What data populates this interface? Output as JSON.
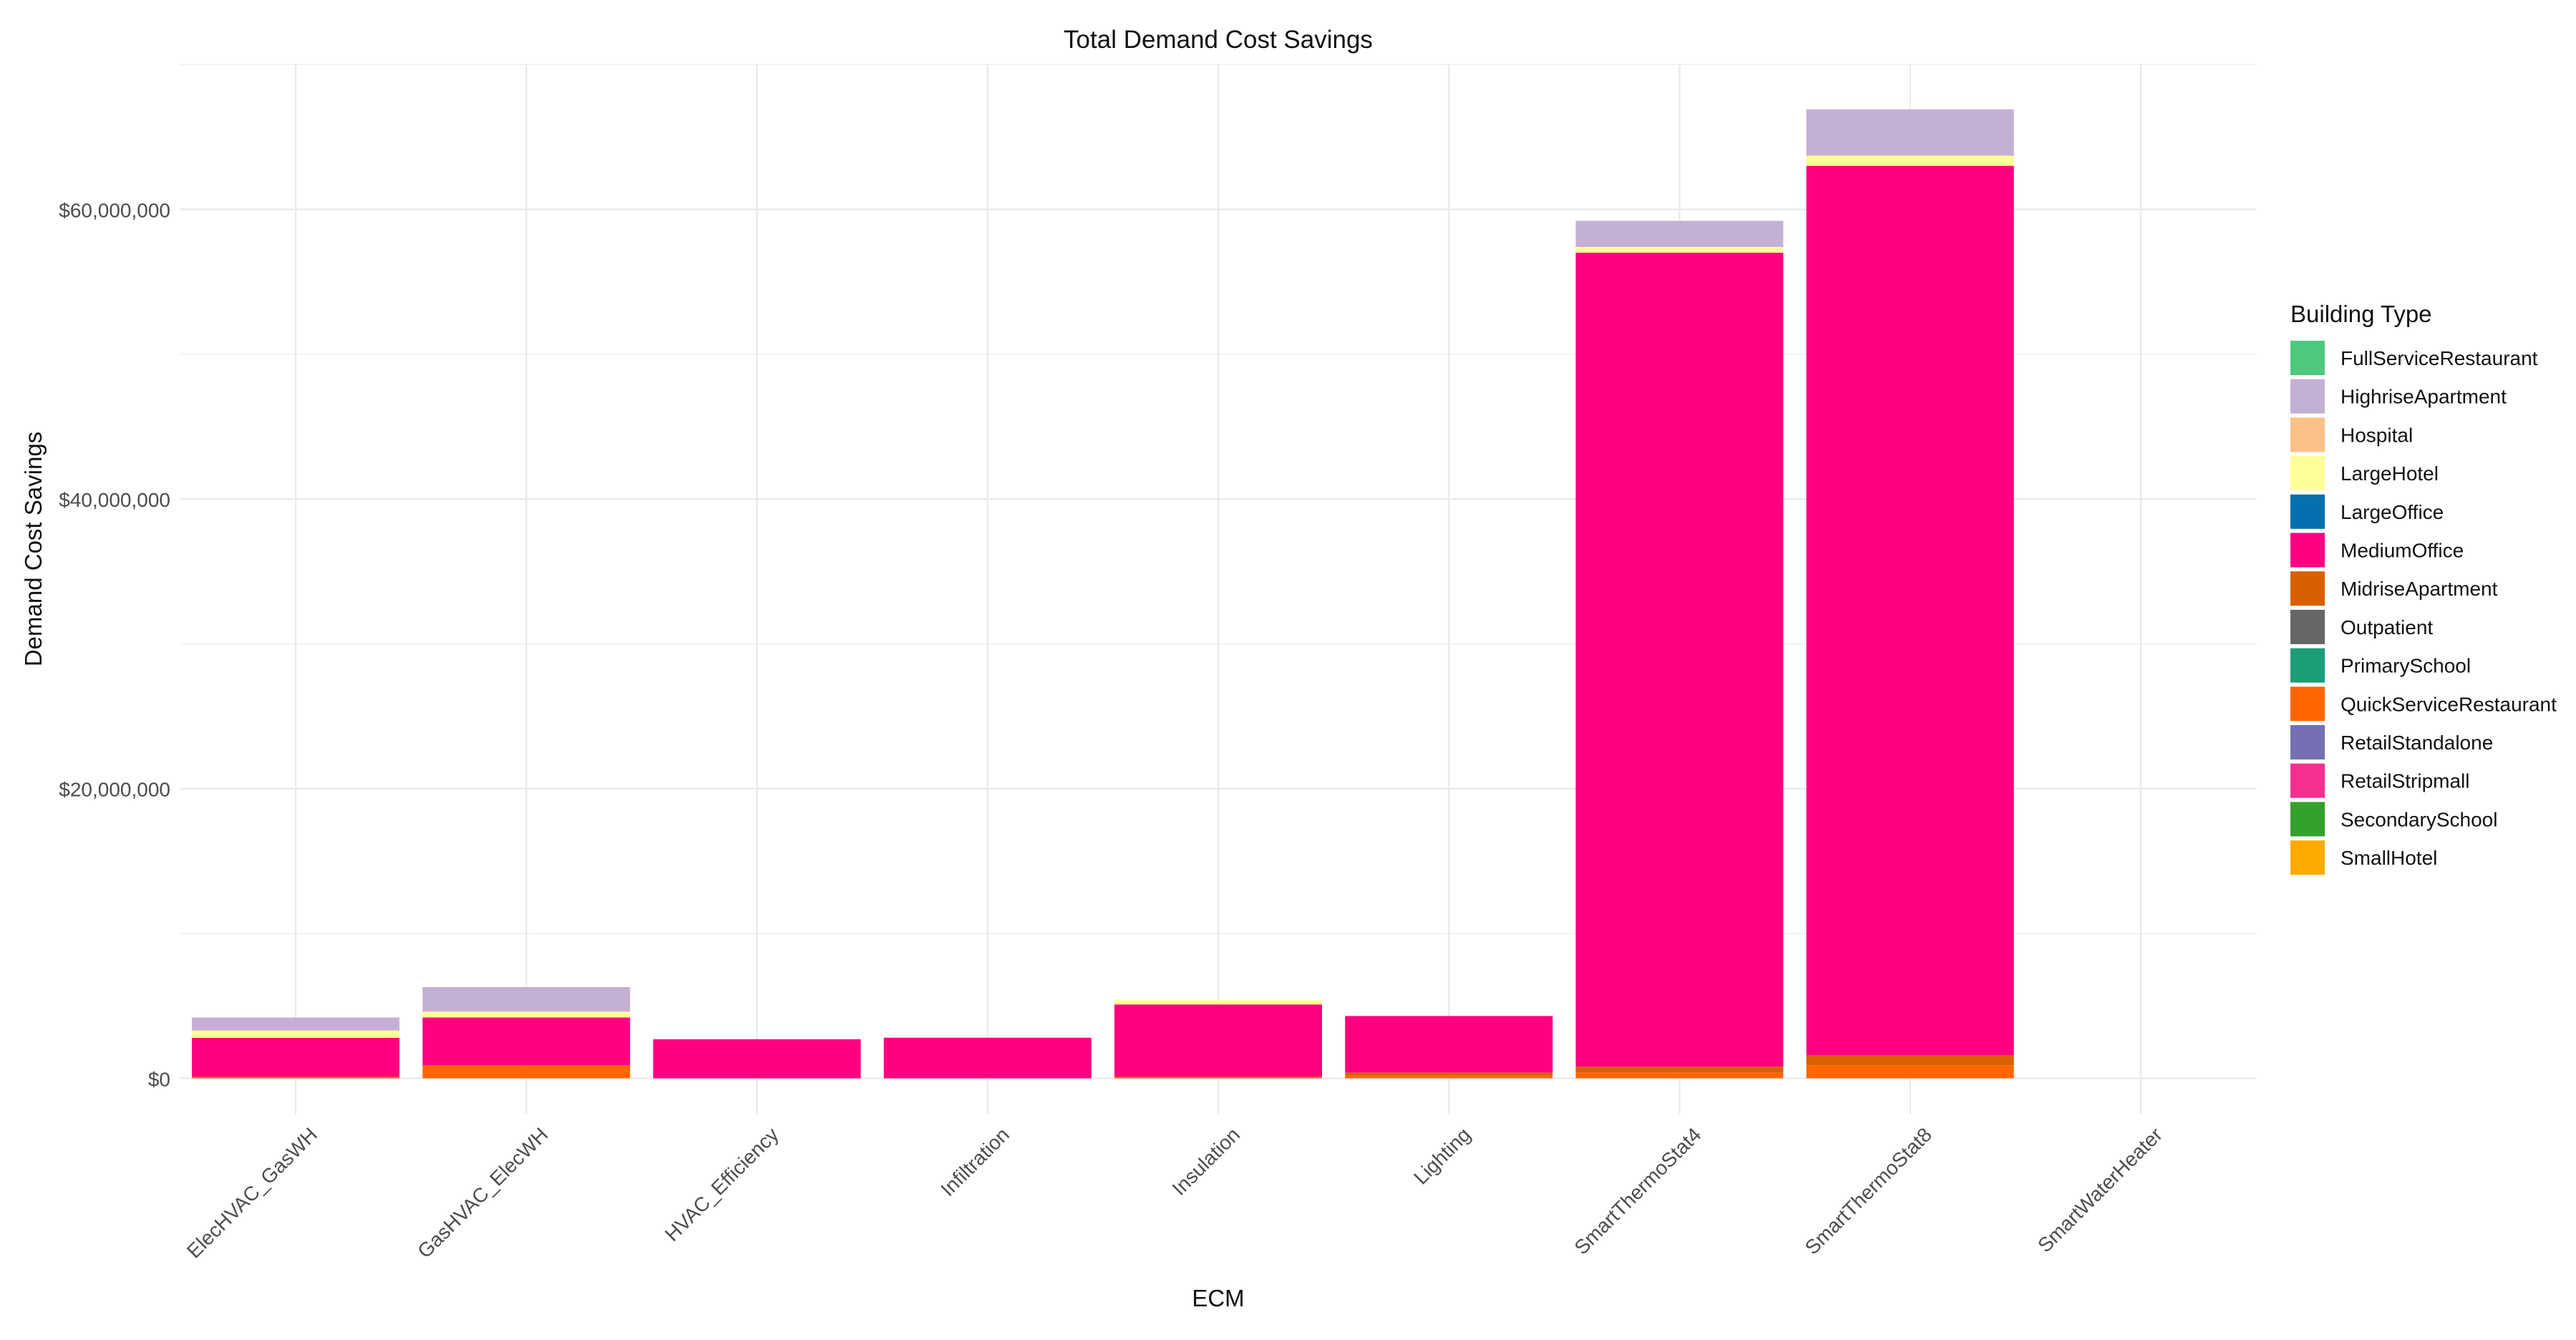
{
  "chart_data": {
    "type": "bar",
    "stacked": true,
    "title": "Total Demand Cost Savings",
    "xlabel": "ECM",
    "ylabel": "Demand Cost Savings",
    "ylim": [
      -2500000,
      70000000
    ],
    "y_ticks": [
      0,
      20000000,
      40000000,
      60000000
    ],
    "y_tick_labels": [
      "$0",
      "$20,000,000",
      "$40,000,000",
      "$60,000,000"
    ],
    "grid": true,
    "legend_title": "Building Type",
    "legend_position": "right",
    "categories": [
      "ElecHVAC_GasWH",
      "GasHVAC_ElecWH",
      "HVAC_Efficiency",
      "Infiltration",
      "Insulation",
      "Lighting",
      "SmartThermoStat4",
      "SmartThermoStat8",
      "SmartWaterHeater"
    ],
    "series": [
      {
        "name": "FullServiceRestaurant",
        "color": "#4DC97E",
        "values": [
          0,
          0,
          0,
          0,
          0,
          0,
          0,
          0,
          0
        ]
      },
      {
        "name": "HighriseApartment",
        "color": "#C5B0D5",
        "values": [
          900000,
          1700000,
          0,
          0,
          0,
          0,
          1800000,
          3200000,
          0
        ]
      },
      {
        "name": "Hospital",
        "color": "#FDC086",
        "values": [
          0,
          0,
          0,
          0,
          0,
          0,
          0,
          0,
          0
        ]
      },
      {
        "name": "LargeHotel",
        "color": "#FFFF99",
        "values": [
          500000,
          400000,
          0,
          0,
          300000,
          0,
          400000,
          700000,
          0
        ]
      },
      {
        "name": "LargeOffice",
        "color": "#0570B0",
        "values": [
          0,
          0,
          0,
          0,
          0,
          0,
          0,
          0,
          0
        ]
      },
      {
        "name": "MediumOffice",
        "color": "#FF0080",
        "values": [
          2700000,
          3300000,
          2700000,
          2800000,
          5000000,
          3900000,
          56200000,
          61400000,
          0
        ]
      },
      {
        "name": "MidriseApartment",
        "color": "#D95F02",
        "values": [
          0,
          0,
          0,
          0,
          0,
          200000,
          400000,
          700000,
          0
        ]
      },
      {
        "name": "Outpatient",
        "color": "#666666",
        "values": [
          0,
          0,
          0,
          0,
          0,
          0,
          0,
          0,
          0
        ]
      },
      {
        "name": "PrimarySchool",
        "color": "#1B9E77",
        "values": [
          0,
          0,
          0,
          0,
          0,
          0,
          0,
          0,
          0
        ]
      },
      {
        "name": "QuickServiceRestaurant",
        "color": "#FF6600",
        "values": [
          100000,
          900000,
          0,
          0,
          100000,
          200000,
          400000,
          900000,
          0
        ]
      },
      {
        "name": "RetailStandalone",
        "color": "#7570B3",
        "values": [
          0,
          0,
          0,
          0,
          0,
          0,
          0,
          0,
          0
        ]
      },
      {
        "name": "RetailStripmall",
        "color": "#F7308F",
        "values": [
          0,
          0,
          0,
          0,
          0,
          0,
          0,
          0,
          0
        ]
      },
      {
        "name": "SecondarySchool",
        "color": "#33A02C",
        "values": [
          0,
          0,
          0,
          0,
          0,
          0,
          0,
          0,
          0
        ]
      },
      {
        "name": "SmallHotel",
        "color": "#FFAA00",
        "values": [
          0,
          0,
          0,
          0,
          0,
          0,
          0,
          0,
          0
        ]
      }
    ]
  }
}
